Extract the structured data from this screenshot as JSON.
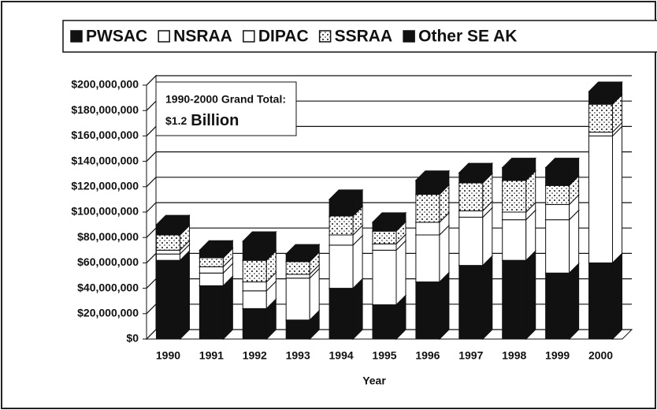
{
  "chart_data": {
    "type": "bar3d_stacked",
    "annotation": {
      "line1": "1990-2000 Grand Total:",
      "line2_prefix": "$1.2",
      "line2_main": "Billion"
    },
    "x_label": "Year",
    "categories": [
      "1990",
      "1991",
      "1992",
      "1993",
      "1994",
      "1995",
      "1996",
      "1997",
      "1998",
      "1999",
      "2000"
    ],
    "series": [
      {
        "name": "PWSAC",
        "color": "#111111",
        "values": [
          62000000,
          42000000,
          24000000,
          15000000,
          40000000,
          27000000,
          45000000,
          58000000,
          62000000,
          52000000,
          60000000
        ]
      },
      {
        "name": "NSRAA",
        "color": "#ffffff",
        "values": [
          5000000,
          10000000,
          14000000,
          33000000,
          34000000,
          43000000,
          37000000,
          38000000,
          32000000,
          42000000,
          100000000
        ]
      },
      {
        "name": "DIPAC",
        "color": "#ffffff",
        "values": [
          3000000,
          5000000,
          7000000,
          3000000,
          8000000,
          5000000,
          10000000,
          5000000,
          6000000,
          12000000,
          3000000
        ]
      },
      {
        "name": "SSRAA",
        "color": "#ffffff",
        "pattern": "dots",
        "values": [
          12000000,
          7000000,
          17000000,
          10000000,
          15000000,
          10000000,
          22000000,
          22000000,
          25000000,
          15000000,
          22000000
        ]
      },
      {
        "name": "Other SE AK",
        "color": "#111111",
        "values": [
          8000000,
          6000000,
          15000000,
          6000000,
          13000000,
          7000000,
          11000000,
          8000000,
          10000000,
          14000000,
          10000000
        ]
      }
    ],
    "ylim": [
      0,
      200000000
    ],
    "yticks": [
      {
        "value": 0,
        "label": "$0"
      },
      {
        "value": 20000000,
        "label": "$20,000,000"
      },
      {
        "value": 40000000,
        "label": "$40,000,000"
      },
      {
        "value": 60000000,
        "label": "$60,000,000"
      },
      {
        "value": 80000000,
        "label": "$80,000,000"
      },
      {
        "value": 100000000,
        "label": "$100,000,000"
      },
      {
        "value": 120000000,
        "label": "$120,000,000"
      },
      {
        "value": 140000000,
        "label": "$140,000,000"
      },
      {
        "value": 160000000,
        "label": "$160,000,000"
      },
      {
        "value": 180000000,
        "label": "$180,000,000"
      },
      {
        "value": 200000000,
        "label": "$200,000,000"
      }
    ],
    "grid": true
  }
}
